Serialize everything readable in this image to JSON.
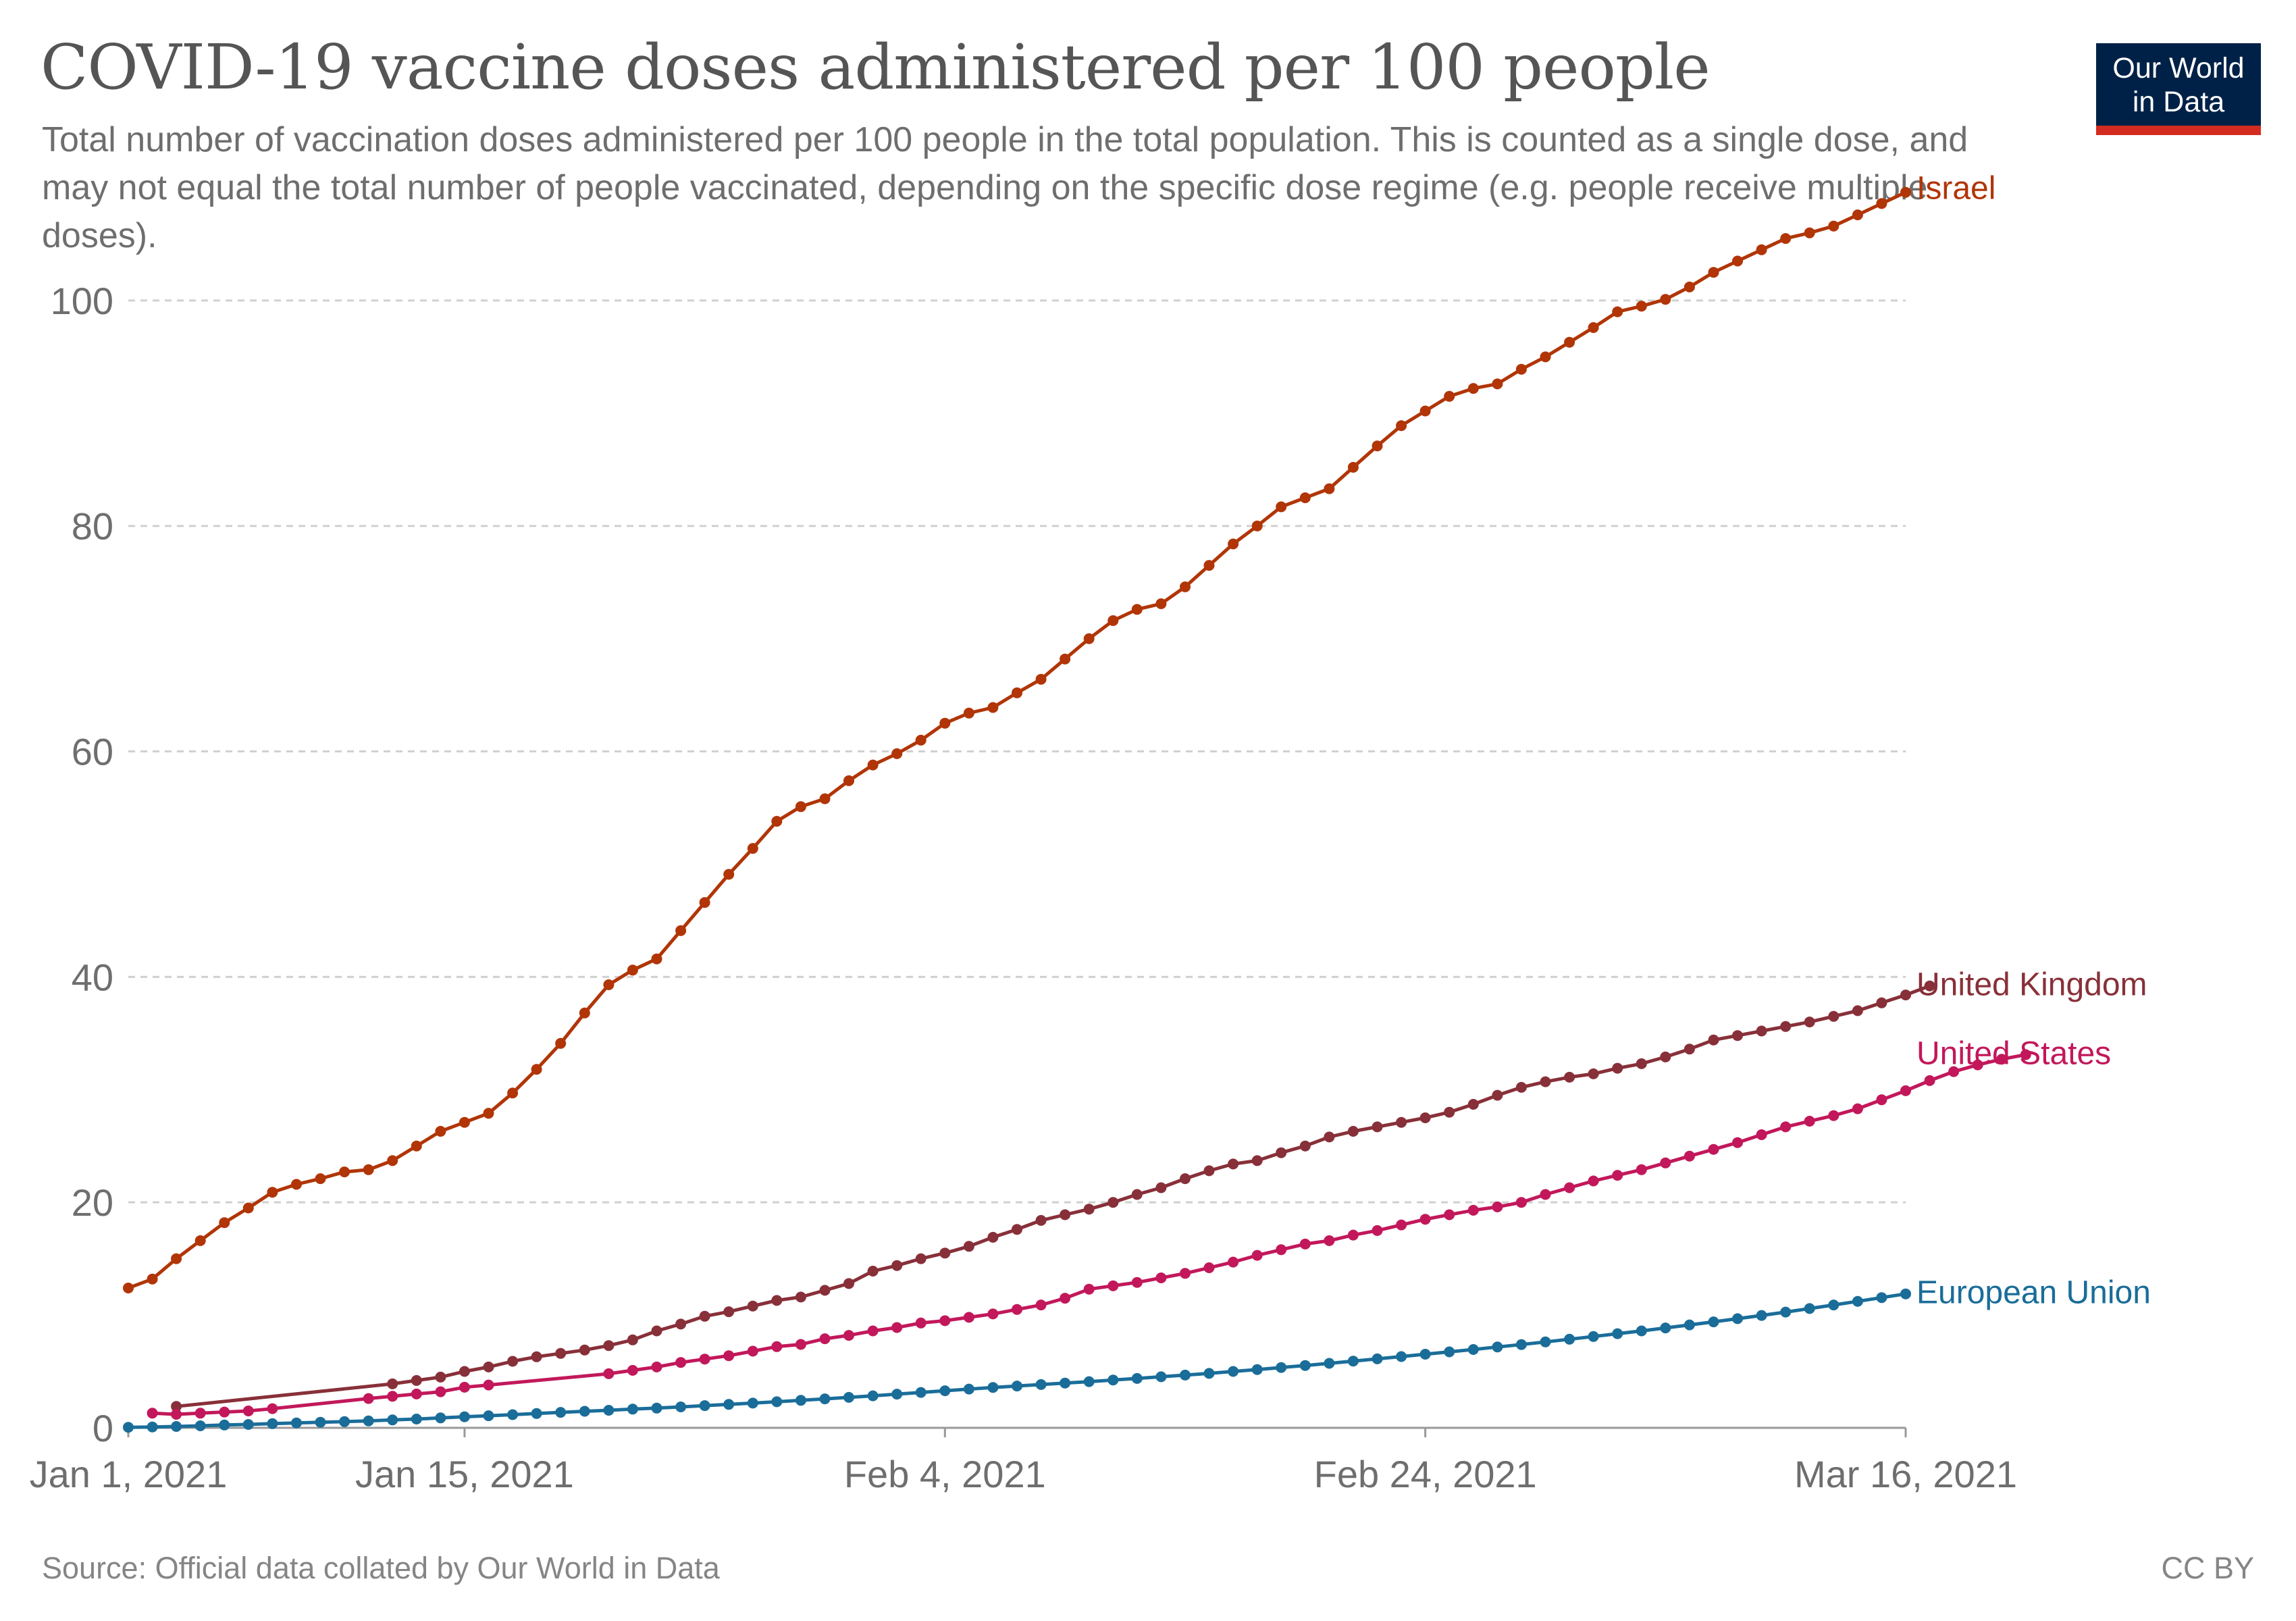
{
  "header": {
    "title": "COVID-19 vaccine doses administered per 100 people",
    "subtitle": "Total number of vaccination doses administered per 100 people in the total population. This is counted as a single dose, and may not equal the total number of people vaccinated, depending on the specific dose regime (e.g. people receive multiple doses).",
    "logo_line1": "Our World",
    "logo_line2": "in Data"
  },
  "footer": {
    "source": "Source: Official data collated by Our World in Data",
    "license": "CC BY"
  },
  "colors": {
    "Israel": "#b13507",
    "United Kingdom": "#883039",
    "United States": "#c2185b",
    "European Union": "#1a6d99",
    "logo_bg": "#002147",
    "logo_accent": "#d42b21"
  },
  "chart_data": {
    "type": "line",
    "title": "COVID-19 vaccine doses administered per 100 people",
    "xlabel": "",
    "ylabel": "",
    "x_start": "2021-01-01",
    "x_end": "2021-03-16",
    "ylim": [
      0,
      110
    ],
    "y_ticks": [
      0,
      20,
      40,
      60,
      80,
      100
    ],
    "x_ticks": [
      {
        "date": "2021-01-01",
        "label": "Jan 1, 2021"
      },
      {
        "date": "2021-01-15",
        "label": "Jan 15, 2021"
      },
      {
        "date": "2021-02-04",
        "label": "Feb 4, 2021"
      },
      {
        "date": "2021-02-24",
        "label": "Feb 24, 2021"
      },
      {
        "date": "2021-03-16",
        "label": "Mar 16, 2021"
      }
    ],
    "grid": "horizontal dashed",
    "legend": "line-end labels",
    "series": [
      {
        "name": "Israel",
        "start": "2021-01-01",
        "values": [
          12.4,
          13.2,
          15.0,
          16.6,
          18.2,
          19.5,
          20.9,
          21.6,
          22.1,
          22.7,
          22.9,
          23.7,
          25.0,
          26.3,
          27.1,
          27.9,
          29.7,
          31.8,
          34.1,
          36.8,
          39.3,
          40.6,
          41.6,
          44.1,
          46.6,
          49.1,
          51.4,
          53.8,
          55.1,
          55.8,
          57.4,
          58.8,
          59.8,
          61.0,
          62.5,
          63.4,
          63.9,
          65.2,
          66.4,
          68.2,
          70.0,
          71.6,
          72.6,
          73.1,
          74.6,
          76.5,
          78.4,
          80.0,
          81.7,
          82.5,
          83.3,
          85.2,
          87.1,
          88.9,
          90.2,
          91.5,
          92.2,
          92.6,
          93.9,
          95.0,
          96.3,
          97.6,
          99.0,
          99.5,
          100.1,
          101.2,
          102.5,
          103.5,
          104.5,
          105.5,
          106.0,
          106.6,
          107.6,
          108.6,
          109.6
        ]
      },
      {
        "name": "United Kingdom",
        "start": "2021-01-03",
        "values": [
          1.9,
          null,
          null,
          null,
          null,
          null,
          null,
          null,
          null,
          3.9,
          4.2,
          4.5,
          5.0,
          5.4,
          5.9,
          6.3,
          6.6,
          6.9,
          7.3,
          7.8,
          8.6,
          9.2,
          9.9,
          10.3,
          10.8,
          11.3,
          11.6,
          12.2,
          12.8,
          13.9,
          14.4,
          15.0,
          15.5,
          16.1,
          16.9,
          17.6,
          18.4,
          18.9,
          19.4,
          20.0,
          20.7,
          21.3,
          22.1,
          22.8,
          23.4,
          23.7,
          24.4,
          25.0,
          25.8,
          26.3,
          26.7,
          27.1,
          27.5,
          28.0,
          28.7,
          29.5,
          30.2,
          30.7,
          31.1,
          31.4,
          31.9,
          32.3,
          32.9,
          33.6,
          34.4,
          34.8,
          35.2,
          35.6,
          36.0,
          36.5,
          37.0,
          37.7,
          38.4,
          39.2
        ]
      },
      {
        "name": "United States",
        "start": "2021-01-02",
        "values": [
          1.3,
          1.2,
          1.3,
          1.4,
          1.5,
          1.7,
          null,
          null,
          null,
          2.6,
          2.8,
          3.0,
          3.2,
          3.6,
          3.8,
          null,
          null,
          null,
          null,
          4.8,
          5.1,
          5.4,
          5.8,
          6.1,
          6.4,
          6.8,
          7.2,
          7.4,
          7.9,
          8.2,
          8.6,
          8.9,
          9.3,
          9.5,
          9.8,
          10.1,
          10.5,
          10.9,
          11.5,
          12.3,
          12.6,
          12.9,
          13.3,
          13.7,
          14.2,
          14.7,
          15.3,
          15.8,
          16.3,
          16.6,
          17.1,
          17.5,
          18.0,
          18.5,
          18.9,
          19.3,
          19.6,
          20.0,
          20.7,
          21.3,
          21.9,
          22.4,
          22.9,
          23.5,
          24.1,
          24.7,
          25.3,
          26.0,
          26.7,
          27.2,
          27.7,
          28.3,
          29.1,
          29.9,
          30.8,
          31.6,
          32.2,
          32.7,
          33.1
        ]
      },
      {
        "name": "European Union",
        "start": "2021-01-01",
        "values": [
          0.05,
          0.08,
          0.12,
          0.18,
          0.25,
          0.3,
          0.37,
          0.44,
          0.5,
          0.55,
          0.62,
          0.7,
          0.78,
          0.88,
          0.98,
          1.07,
          1.17,
          1.27,
          1.37,
          1.47,
          1.56,
          1.66,
          1.75,
          1.86,
          1.97,
          2.08,
          2.19,
          2.31,
          2.44,
          2.57,
          2.7,
          2.84,
          2.99,
          3.14,
          3.29,
          3.44,
          3.58,
          3.71,
          3.84,
          3.97,
          4.1,
          4.24,
          4.38,
          4.53,
          4.68,
          4.83,
          5.0,
          5.17,
          5.35,
          5.53,
          5.72,
          5.92,
          6.12,
          6.32,
          6.53,
          6.74,
          6.95,
          7.17,
          7.39,
          7.62,
          7.86,
          8.1,
          8.35,
          8.6,
          8.86,
          9.13,
          9.4,
          9.68,
          9.97,
          10.27,
          10.58,
          10.9,
          11.22,
          11.55,
          11.88
        ]
      }
    ]
  }
}
